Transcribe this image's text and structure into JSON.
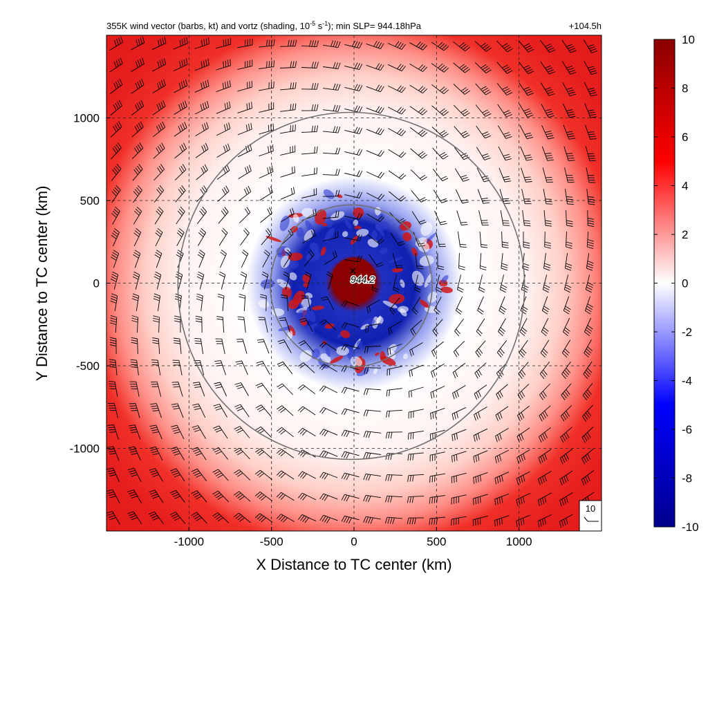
{
  "chart_data": {
    "type": "heatmap",
    "title_left": "355K wind vector (barbs, kt) and vortz (shading, 10",
    "title_exp1": "-5",
    "title_mid": " s",
    "title_exp2": "-1",
    "title_right": "); min SLP= 944.18hPa",
    "time_label": "+104.5h",
    "xlabel": "X Distance to TC center (km)",
    "ylabel": "Y Distance to TC center (km)",
    "xlim": [
      -1500,
      1500
    ],
    "ylim": [
      -1500,
      1500
    ],
    "x_ticks": [
      -1000,
      -500,
      0,
      500,
      1000
    ],
    "y_ticks": [
      -1000,
      -500,
      0,
      500,
      1000
    ],
    "grid": true,
    "center_marker": "×",
    "center_label": "944.2",
    "range_rings_km": [
      440,
      1000
    ],
    "colorbar": {
      "min": -10,
      "max": 10,
      "ticks": [
        10,
        8,
        6,
        4,
        2,
        0,
        -2,
        -4,
        -6,
        -8,
        -10
      ],
      "colors": [
        "#00008b",
        "#0000ff",
        "#ffffff",
        "#ff0000",
        "#8b0000"
      ]
    },
    "barb_reference": {
      "label": "10",
      "units": "kt"
    },
    "vorticity_structure": [
      {
        "region": "core (r < 150 km)",
        "value": 10
      },
      {
        "region": "inner ring (150-450 km)",
        "value": -8
      },
      {
        "region": "middle (450-900 km)",
        "value": 1
      },
      {
        "region": "outer (> 1100 km)",
        "value": 7
      }
    ]
  }
}
